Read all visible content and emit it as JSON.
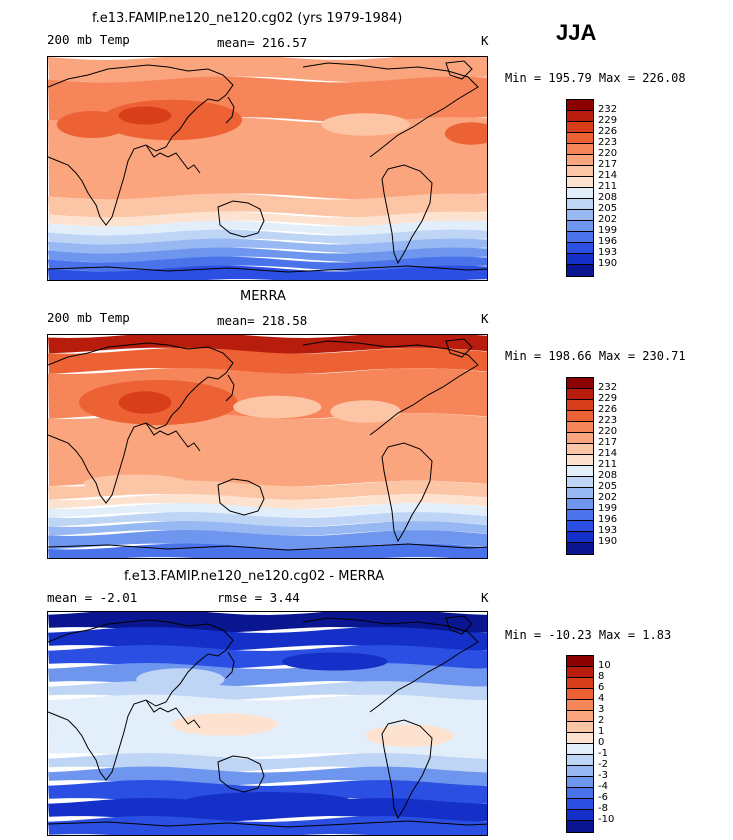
{
  "season": "JJA",
  "colors": {
    "temp_scale": [
      "#8b0000",
      "#b81c0c",
      "#d93e1a",
      "#ec6234",
      "#f6865a",
      "#fba57e",
      "#fcc6a6",
      "#fde3cf",
      "#e2eefa",
      "#bed5f6",
      "#97b8f2",
      "#6f96ee",
      "#4a72ea",
      "#2a4fe2",
      "#1430c8",
      "#0a1690"
    ],
    "diff_scale": [
      "#8b0000",
      "#b81c0c",
      "#d93e1a",
      "#ec6234",
      "#f6865a",
      "#fba57e",
      "#fcc6a6",
      "#fde3cf",
      "#e2eefa",
      "#bed5f6",
      "#97b8f2",
      "#6f96ee",
      "#4a72ea",
      "#2a4fe2",
      "#1430c8",
      "#0a1690"
    ],
    "coast": "#000000"
  },
  "panels": [
    {
      "title": "f.e13.FAMIP.ne120_ne120.cg02 (yrs 1979-1984)",
      "left_label": "200 mb Temp",
      "mid_label": "mean= 216.57",
      "units": "K",
      "minmax": "Min = 195.79 Max = 226.08",
      "ticks": [
        "232",
        "229",
        "226",
        "223",
        "220",
        "217",
        "214",
        "211",
        "208",
        "205",
        "202",
        "199",
        "196",
        "193",
        "190"
      ]
    },
    {
      "title": "MERRA",
      "left_label": "200 mb Temp",
      "mid_label": "mean= 218.58",
      "units": "K",
      "minmax": "Min = 198.66 Max = 230.71",
      "ticks": [
        "232",
        "229",
        "226",
        "223",
        "220",
        "217",
        "214",
        "211",
        "208",
        "205",
        "202",
        "199",
        "196",
        "193",
        "190"
      ]
    },
    {
      "title": "f.e13.FAMIP.ne120_ne120.cg02 - MERRA",
      "left_label": "mean =   -2.01",
      "mid_label": "rmse =    3.44",
      "units": "K",
      "minmax": "Min = -10.23 Max =   1.83",
      "ticks": [
        "10",
        "8",
        "6",
        "4",
        "3",
        "2",
        "1",
        "0",
        "-1",
        "-2",
        "-3",
        "-4",
        "-6",
        "-8",
        "-10"
      ]
    }
  ],
  "chart_data": [
    {
      "type": "heatmap",
      "title": "f.e13.FAMIP.ne120_ne120.cg02 (yrs 1979-1984)",
      "variable": "200 mb Temp",
      "units": "K",
      "season": "JJA",
      "mean": 216.57,
      "min": 195.79,
      "max": 226.08,
      "levels": [
        190,
        193,
        196,
        199,
        202,
        205,
        208,
        211,
        214,
        217,
        220,
        223,
        226,
        229,
        232
      ],
      "zonal_pattern": "warm Asian monsoon maximum ~223-226 K near 30N, subtropics ~217-220 K, tropics ~214-217 K, cold Antarctic ~190-196 K"
    },
    {
      "type": "heatmap",
      "title": "MERRA",
      "variable": "200 mb Temp",
      "units": "K",
      "season": "JJA",
      "mean": 218.58,
      "min": 198.66,
      "max": 230.71,
      "levels": [
        190,
        193,
        196,
        199,
        202,
        205,
        208,
        211,
        214,
        217,
        220,
        223,
        226,
        229,
        232
      ],
      "zonal_pattern": "Arctic and Tibetan plateau maxima ~226-232 K, subtropics ~220-223 K, Southern Ocean cooling to ~196-199 K near Antarctica"
    },
    {
      "type": "heatmap",
      "title": "f.e13.FAMIP.ne120_ne120.cg02 - MERRA",
      "variable": "200 mb Temp difference",
      "units": "K",
      "season": "JJA",
      "mean": -2.01,
      "rmse": 3.44,
      "min": -10.23,
      "max": 1.83,
      "levels": [
        -10,
        -8,
        -6,
        -4,
        -3,
        -2,
        -1,
        0,
        1,
        2,
        3,
        4,
        6,
        8,
        10
      ],
      "zonal_pattern": "strong cold bias -6 to -10 K in the Arctic, near zero to slightly positive (0 to 1 K) in tropics, cold bias -3 to -6 K over Southern Ocean"
    }
  ]
}
